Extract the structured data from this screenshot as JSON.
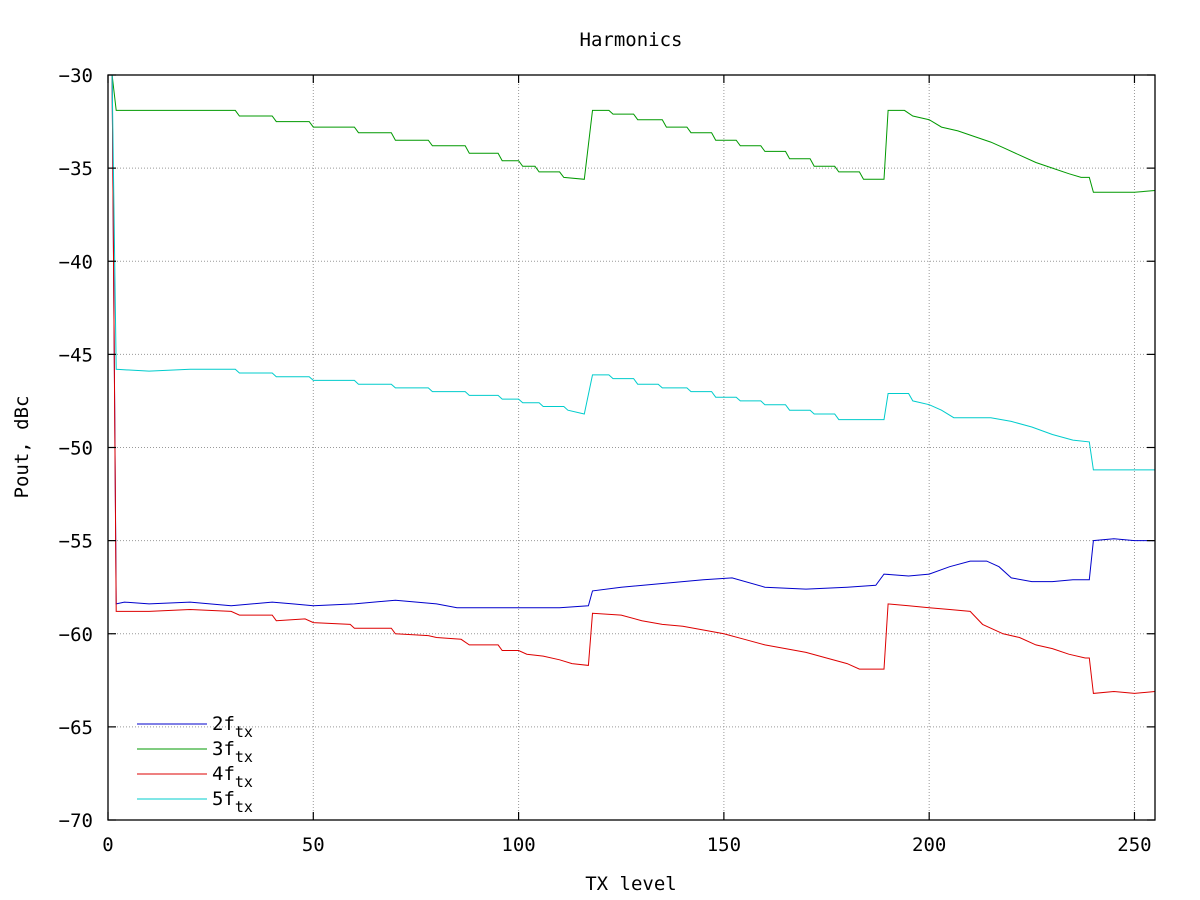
{
  "chart_data": {
    "type": "line",
    "title": "Harmonics",
    "xlabel": "TX level",
    "ylabel": "Pout, dBc",
    "xlim": [
      0,
      255
    ],
    "ylim": [
      -70,
      -30
    ],
    "xticks": [
      0,
      50,
      100,
      150,
      200,
      250
    ],
    "yticks": [
      -30,
      -35,
      -40,
      -45,
      -50,
      -55,
      -60,
      -65,
      -70
    ],
    "grid": true,
    "legend_position": "bottom-left",
    "series": [
      {
        "name_main": "2f",
        "name_sub": "tx",
        "color": "#0000cc",
        "points": [
          [
            1,
            -30
          ],
          [
            2,
            -58.4
          ],
          [
            4,
            -58.3
          ],
          [
            10,
            -58.4
          ],
          [
            20,
            -58.3
          ],
          [
            30,
            -58.5
          ],
          [
            40,
            -58.3
          ],
          [
            45,
            -58.4
          ],
          [
            50,
            -58.5
          ],
          [
            60,
            -58.4
          ],
          [
            70,
            -58.2
          ],
          [
            80,
            -58.4
          ],
          [
            85,
            -58.6
          ],
          [
            90,
            -58.6
          ],
          [
            95,
            -58.6
          ],
          [
            100,
            -58.6
          ],
          [
            110,
            -58.6
          ],
          [
            117,
            -58.5
          ],
          [
            118,
            -57.7
          ],
          [
            125,
            -57.5
          ],
          [
            135,
            -57.3
          ],
          [
            145,
            -57.1
          ],
          [
            152,
            -57.0
          ],
          [
            160,
            -57.5
          ],
          [
            170,
            -57.6
          ],
          [
            180,
            -57.5
          ],
          [
            187,
            -57.4
          ],
          [
            189,
            -56.8
          ],
          [
            195,
            -56.9
          ],
          [
            200,
            -56.8
          ],
          [
            205,
            -56.4
          ],
          [
            210,
            -56.1
          ],
          [
            214,
            -56.1
          ],
          [
            217,
            -56.4
          ],
          [
            220,
            -57.0
          ],
          [
            225,
            -57.2
          ],
          [
            230,
            -57.2
          ],
          [
            235,
            -57.1
          ],
          [
            239,
            -57.1
          ],
          [
            240,
            -55.0
          ],
          [
            245,
            -54.9
          ],
          [
            250,
            -55.0
          ],
          [
            255,
            -55.0
          ]
        ]
      },
      {
        "name_main": "3f",
        "name_sub": "tx",
        "color": "#009900",
        "points": [
          [
            1,
            -30
          ],
          [
            2,
            -31.9
          ],
          [
            10,
            -31.9
          ],
          [
            20,
            -31.9
          ],
          [
            31,
            -31.9
          ],
          [
            32,
            -32.2
          ],
          [
            40,
            -32.2
          ],
          [
            41,
            -32.5
          ],
          [
            49,
            -32.5
          ],
          [
            50,
            -32.8
          ],
          [
            60,
            -32.8
          ],
          [
            61,
            -33.1
          ],
          [
            69,
            -33.1
          ],
          [
            70,
            -33.5
          ],
          [
            78,
            -33.5
          ],
          [
            79,
            -33.8
          ],
          [
            87,
            -33.8
          ],
          [
            88,
            -34.2
          ],
          [
            95,
            -34.2
          ],
          [
            96,
            -34.6
          ],
          [
            100,
            -34.6
          ],
          [
            101,
            -34.9
          ],
          [
            104,
            -34.9
          ],
          [
            105,
            -35.2
          ],
          [
            110,
            -35.2
          ],
          [
            111,
            -35.5
          ],
          [
            116,
            -35.6
          ],
          [
            118,
            -31.9
          ],
          [
            122,
            -31.9
          ],
          [
            123,
            -32.1
          ],
          [
            128,
            -32.1
          ],
          [
            129,
            -32.4
          ],
          [
            135,
            -32.4
          ],
          [
            136,
            -32.8
          ],
          [
            141,
            -32.8
          ],
          [
            142,
            -33.1
          ],
          [
            147,
            -33.1
          ],
          [
            148,
            -33.5
          ],
          [
            153,
            -33.5
          ],
          [
            154,
            -33.8
          ],
          [
            159,
            -33.8
          ],
          [
            160,
            -34.1
          ],
          [
            165,
            -34.1
          ],
          [
            166,
            -34.5
          ],
          [
            171,
            -34.5
          ],
          [
            172,
            -34.9
          ],
          [
            177,
            -34.9
          ],
          [
            178,
            -35.2
          ],
          [
            183,
            -35.2
          ],
          [
            184,
            -35.6
          ],
          [
            189,
            -35.6
          ],
          [
            190,
            -31.9
          ],
          [
            194,
            -31.9
          ],
          [
            196,
            -32.2
          ],
          [
            200,
            -32.4
          ],
          [
            203,
            -32.8
          ],
          [
            207,
            -33.0
          ],
          [
            211,
            -33.3
          ],
          [
            215,
            -33.6
          ],
          [
            218,
            -33.9
          ],
          [
            222,
            -34.3
          ],
          [
            226,
            -34.7
          ],
          [
            230,
            -35.0
          ],
          [
            234,
            -35.3
          ],
          [
            237,
            -35.5
          ],
          [
            239,
            -35.5
          ],
          [
            240,
            -36.3
          ],
          [
            245,
            -36.3
          ],
          [
            250,
            -36.3
          ],
          [
            255,
            -36.2
          ]
        ]
      },
      {
        "name_main": "4f",
        "name_sub": "tx",
        "color": "#dd0000",
        "points": [
          [
            1,
            -30
          ],
          [
            2,
            -58.8
          ],
          [
            10,
            -58.8
          ],
          [
            20,
            -58.7
          ],
          [
            30,
            -58.8
          ],
          [
            32,
            -59.0
          ],
          [
            40,
            -59.0
          ],
          [
            41,
            -59.3
          ],
          [
            48,
            -59.2
          ],
          [
            50,
            -59.4
          ],
          [
            59,
            -59.5
          ],
          [
            60,
            -59.7
          ],
          [
            69,
            -59.7
          ],
          [
            70,
            -60.0
          ],
          [
            78,
            -60.1
          ],
          [
            80,
            -60.2
          ],
          [
            86,
            -60.3
          ],
          [
            88,
            -60.6
          ],
          [
            95,
            -60.6
          ],
          [
            96,
            -60.9
          ],
          [
            100,
            -60.9
          ],
          [
            102,
            -61.1
          ],
          [
            106,
            -61.2
          ],
          [
            110,
            -61.4
          ],
          [
            113,
            -61.6
          ],
          [
            117,
            -61.7
          ],
          [
            118,
            -58.9
          ],
          [
            125,
            -59.0
          ],
          [
            130,
            -59.3
          ],
          [
            135,
            -59.5
          ],
          [
            140,
            -59.6
          ],
          [
            145,
            -59.8
          ],
          [
            150,
            -60.0
          ],
          [
            155,
            -60.3
          ],
          [
            160,
            -60.6
          ],
          [
            165,
            -60.8
          ],
          [
            170,
            -61.0
          ],
          [
            175,
            -61.3
          ],
          [
            180,
            -61.6
          ],
          [
            183,
            -61.9
          ],
          [
            189,
            -61.9
          ],
          [
            190,
            -58.4
          ],
          [
            195,
            -58.5
          ],
          [
            200,
            -58.6
          ],
          [
            205,
            -58.7
          ],
          [
            210,
            -58.8
          ],
          [
            213,
            -59.5
          ],
          [
            218,
            -60.0
          ],
          [
            222,
            -60.2
          ],
          [
            226,
            -60.6
          ],
          [
            230,
            -60.8
          ],
          [
            234,
            -61.1
          ],
          [
            238,
            -61.3
          ],
          [
            239,
            -61.3
          ],
          [
            240,
            -63.2
          ],
          [
            245,
            -63.1
          ],
          [
            250,
            -63.2
          ],
          [
            255,
            -63.1
          ]
        ]
      },
      {
        "name_main": "5f",
        "name_sub": "tx",
        "color": "#00cccc",
        "points": [
          [
            1,
            -30
          ],
          [
            2,
            -45.8
          ],
          [
            10,
            -45.9
          ],
          [
            20,
            -45.8
          ],
          [
            31,
            -45.8
          ],
          [
            32,
            -46.0
          ],
          [
            40,
            -46.0
          ],
          [
            41,
            -46.2
          ],
          [
            49,
            -46.2
          ],
          [
            50,
            -46.4
          ],
          [
            60,
            -46.4
          ],
          [
            61,
            -46.6
          ],
          [
            69,
            -46.6
          ],
          [
            70,
            -46.8
          ],
          [
            78,
            -46.8
          ],
          [
            79,
            -47.0
          ],
          [
            87,
            -47.0
          ],
          [
            88,
            -47.2
          ],
          [
            95,
            -47.2
          ],
          [
            96,
            -47.4
          ],
          [
            100,
            -47.4
          ],
          [
            101,
            -47.6
          ],
          [
            105,
            -47.6
          ],
          [
            106,
            -47.8
          ],
          [
            111,
            -47.8
          ],
          [
            112,
            -48.0
          ],
          [
            116,
            -48.2
          ],
          [
            118,
            -46.1
          ],
          [
            122,
            -46.1
          ],
          [
            123,
            -46.3
          ],
          [
            128,
            -46.3
          ],
          [
            129,
            -46.6
          ],
          [
            134,
            -46.6
          ],
          [
            135,
            -46.8
          ],
          [
            141,
            -46.8
          ],
          [
            142,
            -47.0
          ],
          [
            147,
            -47.0
          ],
          [
            148,
            -47.3
          ],
          [
            153,
            -47.3
          ],
          [
            154,
            -47.5
          ],
          [
            159,
            -47.5
          ],
          [
            160,
            -47.7
          ],
          [
            165,
            -47.7
          ],
          [
            166,
            -48.0
          ],
          [
            171,
            -48.0
          ],
          [
            172,
            -48.2
          ],
          [
            177,
            -48.2
          ],
          [
            178,
            -48.5
          ],
          [
            183,
            -48.5
          ],
          [
            189,
            -48.5
          ],
          [
            190,
            -47.1
          ],
          [
            195,
            -47.1
          ],
          [
            196,
            -47.5
          ],
          [
            200,
            -47.7
          ],
          [
            203,
            -48.0
          ],
          [
            206,
            -48.4
          ],
          [
            215,
            -48.4
          ],
          [
            220,
            -48.6
          ],
          [
            225,
            -48.9
          ],
          [
            230,
            -49.3
          ],
          [
            235,
            -49.6
          ],
          [
            239,
            -49.7
          ],
          [
            240,
            -51.2
          ],
          [
            245,
            -51.2
          ],
          [
            250,
            -51.2
          ],
          [
            255,
            -51.2
          ]
        ]
      }
    ]
  }
}
